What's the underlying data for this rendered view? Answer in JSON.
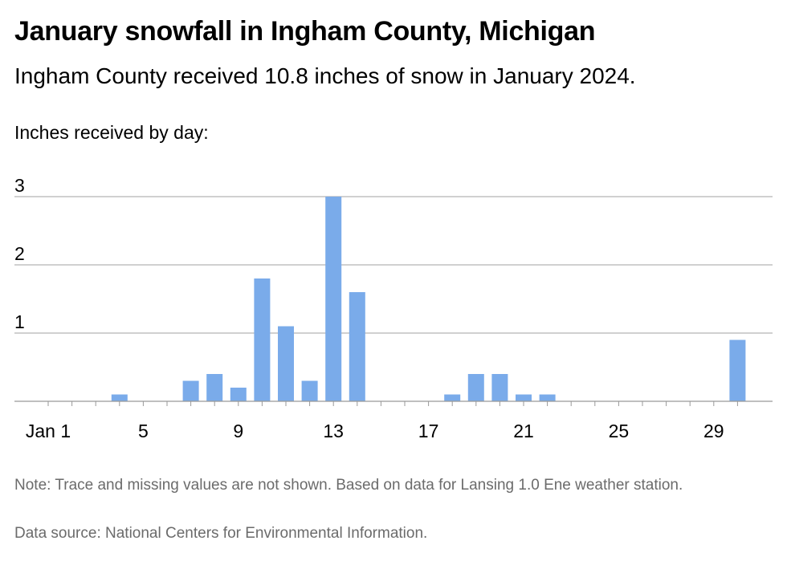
{
  "header": {
    "title": "January snowfall in Ingham County, Michigan",
    "subtitle": "Ingham County received 10.8 inches of snow in January 2024."
  },
  "axis_caption": "Inches received by day:",
  "footer": {
    "note": "Note: Trace and missing values are not shown. Based on data for Lansing 1.0 Ene weather station.",
    "source": "Data source: National Centers for Environmental Information."
  },
  "colors": {
    "bar": "#7aabea",
    "gridline": "#b4b4b4",
    "baseline": "#999999"
  },
  "chart_data": {
    "type": "bar",
    "title": "January snowfall in Ingham County, Michigan",
    "subtitle": "Ingham County received 10.8 inches of snow in January 2024.",
    "ylabel": "Inches received by day:",
    "xlabel": "",
    "x": [
      1,
      2,
      3,
      4,
      5,
      6,
      7,
      8,
      9,
      10,
      11,
      12,
      13,
      14,
      15,
      16,
      17,
      18,
      19,
      20,
      21,
      22,
      23,
      24,
      25,
      26,
      27,
      28,
      29,
      30
    ],
    "values": [
      0,
      0,
      0,
      0.1,
      0,
      0,
      0.3,
      0.4,
      0.2,
      1.8,
      1.1,
      0.3,
      3.0,
      1.6,
      0,
      0,
      0,
      0.1,
      0.4,
      0.4,
      0.1,
      0.1,
      0,
      0,
      0,
      0,
      0,
      0,
      0,
      0.9
    ],
    "x_ticks": [
      {
        "day": 1,
        "label": "Jan 1"
      },
      {
        "day": 5,
        "label": "5"
      },
      {
        "day": 9,
        "label": "9"
      },
      {
        "day": 13,
        "label": "13"
      },
      {
        "day": 17,
        "label": "17"
      },
      {
        "day": 21,
        "label": "21"
      },
      {
        "day": 25,
        "label": "25"
      },
      {
        "day": 29,
        "label": "29"
      }
    ],
    "y_ticks": [
      {
        "value": 1,
        "label": "1"
      },
      {
        "value": 2,
        "label": "2"
      },
      {
        "value": 3,
        "label": "3"
      }
    ],
    "ylim": [
      0,
      3
    ],
    "xlim": [
      1,
      31
    ],
    "grid": true,
    "legend": "none"
  }
}
